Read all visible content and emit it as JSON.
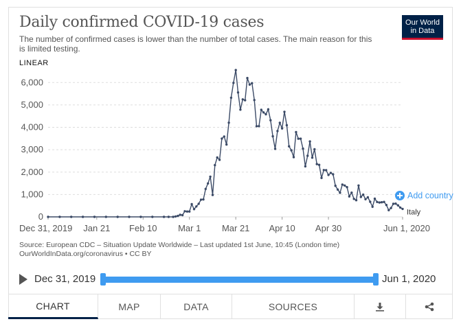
{
  "header": {
    "title": "Daily confirmed COVID-19 cases",
    "subtitle": "The number of confirmed cases is lower than the number of total cases. The main reason for this is limited testing.",
    "logo_line1": "Our World",
    "logo_line2": "in Data",
    "scale_label": "LINEAR"
  },
  "controls": {
    "add_country_label": "Add country",
    "add_icon": "plus-circle-icon"
  },
  "footer": {
    "source_line1": "Source: European CDC – Situation Update Worldwide – Last updated 1st June, 10:45 (London time)",
    "source_line2": "OurWorldInData.org/coronavirus • CC BY"
  },
  "timeline": {
    "start_label": "Dec 31, 2019",
    "end_label": "Jun 1, 2020",
    "play_icon": "play-icon"
  },
  "tabs": [
    {
      "label": "CHART",
      "active": true
    },
    {
      "label": "MAP",
      "active": false
    },
    {
      "label": "DATA",
      "active": false
    },
    {
      "label": "SOURCES",
      "active": false
    },
    {
      "label": "",
      "icon": "download-icon",
      "active": false
    },
    {
      "label": "",
      "icon": "share-icon",
      "active": false
    }
  ],
  "colors": {
    "line": "#3b4a66",
    "grid": "#dddddd",
    "accent": "#3f9bf0",
    "brand": "#002147",
    "brand_red": "#c8102e"
  },
  "chart_data": {
    "type": "line",
    "title": "Daily confirmed COVID-19 cases",
    "ylim": [
      0,
      6500
    ],
    "yticks": [
      0,
      1000,
      2000,
      3000,
      4000,
      5000,
      6000
    ],
    "ytick_labels": [
      "0",
      "1,000",
      "2,000",
      "3,000",
      "4,000",
      "5,000",
      "6,000"
    ],
    "xlim": [
      0,
      153
    ],
    "xticks": [
      0,
      21,
      41,
      61,
      81,
      101,
      121,
      153
    ],
    "xtick_labels": [
      "Dec 31, 2019",
      "Jan 21",
      "Feb 10",
      "Mar 1",
      "Mar 21",
      "Apr 10",
      "Apr 30",
      "Jun 1, 2020"
    ],
    "grid": true,
    "series": [
      {
        "name": "Italy",
        "x": [
          0,
          5,
          10,
          15,
          20,
          25,
          30,
          35,
          40,
          45,
          50,
          52,
          54,
          55,
          56,
          57,
          58,
          59,
          60,
          61,
          62,
          63,
          64,
          65,
          66,
          67,
          68,
          69,
          70,
          71,
          72,
          73,
          74,
          75,
          76,
          77,
          78,
          79,
          80,
          81,
          82,
          83,
          84,
          85,
          86,
          87,
          88,
          89,
          90,
          91,
          92,
          93,
          94,
          95,
          96,
          97,
          98,
          99,
          100,
          101,
          102,
          103,
          104,
          105,
          106,
          107,
          108,
          109,
          110,
          111,
          112,
          113,
          114,
          115,
          116,
          117,
          118,
          119,
          120,
          121,
          122,
          123,
          124,
          125,
          126,
          127,
          128,
          129,
          130,
          131,
          132,
          133,
          134,
          135,
          136,
          137,
          138,
          139,
          140,
          141,
          142,
          143,
          144,
          145,
          146,
          147,
          148,
          149,
          150,
          151,
          152,
          153
        ],
        "values": [
          0,
          0,
          0,
          0,
          0,
          0,
          0,
          0,
          0,
          0,
          0,
          0,
          0,
          17,
          42,
          93,
          78,
          250,
          238,
          240,
          566,
          342,
          466,
          587,
          769,
          778,
          1247,
          1492,
          1797,
          977,
          2313,
          2651,
          2547,
          3497,
          3590,
          3233,
          4207,
          5322,
          5986,
          6557,
          5560,
          4789,
          5249,
          5210,
          6203,
          5909,
          5974,
          5217,
          4050,
          4053,
          4782,
          4668,
          4585,
          4805,
          4316,
          3599,
          3039,
          3836,
          4204,
          3951,
          4694,
          4092,
          3153,
          2972,
          2667,
          3786,
          3493,
          3491,
          3047,
          2256,
          2729,
          3370,
          2646,
          3021,
          2357,
          2324,
          1739,
          2091,
          2086,
          1872,
          1965,
          1900,
          1389,
          1221,
          1075,
          1444,
          1401,
          1327,
          915,
          1083,
          802,
          744,
          1402,
          888,
          992,
          789,
          875,
          675,
          451,
          813,
          665,
          642,
          652,
          669,
          531,
          300,
          397,
          584,
          593,
          516,
          416,
          355
        ]
      }
    ]
  }
}
